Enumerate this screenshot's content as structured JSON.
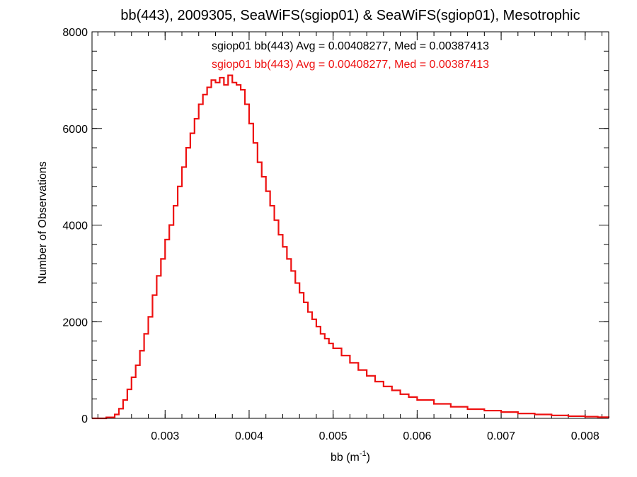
{
  "chart_data": {
    "type": "line",
    "style": "histogram-step",
    "title": "bb(443), 2009305, SeaWiFS(sgiop01) & SeaWiFS(sgiop01), Mesotrophic",
    "xlabel": "bb (m",
    "xlabel_sup": "-1",
    "xlabel_close": ")",
    "ylabel": "Number of Observations",
    "xlim": [
      0.00213,
      0.00828
    ],
    "ylim": [
      0,
      8000
    ],
    "grid": false,
    "x_ticks": [
      0.003,
      0.004,
      0.005,
      0.006,
      0.007,
      0.008
    ],
    "x_tick_labels": [
      "0.003",
      "0.004",
      "0.005",
      "0.006",
      "0.007",
      "0.008"
    ],
    "y_ticks": [
      0,
      2000,
      4000,
      6000,
      8000
    ],
    "y_tick_labels": [
      "0",
      "2000",
      "4000",
      "6000",
      "8000"
    ],
    "x_minor_step": 0.0002,
    "y_minor_step": 400,
    "annotations": [
      {
        "text": "sgiop01 bb(443) Avg = 0.00408277, Med = 0.00387413",
        "color": "#000000"
      },
      {
        "text": "sgiop01 bb(443) Avg = 0.00408277, Med = 0.00387413",
        "color": "#ee1111"
      }
    ],
    "series": [
      {
        "color": "#000000",
        "line_width": 1.6,
        "x": [
          0.00213,
          0.0023,
          0.0024,
          0.00245,
          0.0025,
          0.00255,
          0.0026,
          0.00265,
          0.0027,
          0.00275,
          0.0028,
          0.00285,
          0.0029,
          0.00295,
          0.003,
          0.00305,
          0.0031,
          0.00315,
          0.0032,
          0.00325,
          0.0033,
          0.00335,
          0.0034,
          0.00345,
          0.0035,
          0.00355,
          0.0036,
          0.00365,
          0.0037,
          0.00375,
          0.0038,
          0.00385,
          0.0039,
          0.00395,
          0.004,
          0.00405,
          0.0041,
          0.00415,
          0.0042,
          0.00425,
          0.0043,
          0.00435,
          0.0044,
          0.00445,
          0.0045,
          0.00455,
          0.0046,
          0.00465,
          0.0047,
          0.00475,
          0.0048,
          0.00485,
          0.0049,
          0.00495,
          0.005,
          0.0051,
          0.0052,
          0.0053,
          0.0054,
          0.0055,
          0.0056,
          0.0057,
          0.0058,
          0.0059,
          0.006,
          0.0062,
          0.0064,
          0.0066,
          0.0068,
          0.007,
          0.0072,
          0.0074,
          0.0076,
          0.0078,
          0.008,
          0.00815,
          0.00828
        ],
        "y": [
          0,
          20,
          80,
          200,
          380,
          600,
          850,
          1100,
          1400,
          1750,
          2100,
          2550,
          2950,
          3300,
          3700,
          4000,
          4400,
          4800,
          5200,
          5600,
          5900,
          6200,
          6500,
          6700,
          6850,
          7000,
          6950,
          7050,
          6900,
          7100,
          6950,
          6900,
          6800,
          6500,
          6100,
          5700,
          5300,
          5000,
          4700,
          4400,
          4100,
          3800,
          3550,
          3300,
          3050,
          2800,
          2600,
          2400,
          2200,
          2050,
          1900,
          1750,
          1650,
          1550,
          1450,
          1300,
          1150,
          1000,
          880,
          760,
          660,
          580,
          500,
          440,
          380,
          300,
          240,
          190,
          160,
          130,
          100,
          80,
          60,
          45,
          35,
          25,
          15
        ]
      },
      {
        "color": "#ee1111",
        "line_width": 2.2,
        "x": [
          0.00213,
          0.0023,
          0.0024,
          0.00245,
          0.0025,
          0.00255,
          0.0026,
          0.00265,
          0.0027,
          0.00275,
          0.0028,
          0.00285,
          0.0029,
          0.00295,
          0.003,
          0.00305,
          0.0031,
          0.00315,
          0.0032,
          0.00325,
          0.0033,
          0.00335,
          0.0034,
          0.00345,
          0.0035,
          0.00355,
          0.0036,
          0.00365,
          0.0037,
          0.00375,
          0.0038,
          0.00385,
          0.0039,
          0.00395,
          0.004,
          0.00405,
          0.0041,
          0.00415,
          0.0042,
          0.00425,
          0.0043,
          0.00435,
          0.0044,
          0.00445,
          0.0045,
          0.00455,
          0.0046,
          0.00465,
          0.0047,
          0.00475,
          0.0048,
          0.00485,
          0.0049,
          0.00495,
          0.005,
          0.0051,
          0.0052,
          0.0053,
          0.0054,
          0.0055,
          0.0056,
          0.0057,
          0.0058,
          0.0059,
          0.006,
          0.0062,
          0.0064,
          0.0066,
          0.0068,
          0.007,
          0.0072,
          0.0074,
          0.0076,
          0.0078,
          0.008,
          0.00815,
          0.00828
        ],
        "y": [
          0,
          20,
          80,
          200,
          380,
          600,
          850,
          1100,
          1400,
          1750,
          2100,
          2550,
          2950,
          3300,
          3700,
          4000,
          4400,
          4800,
          5200,
          5600,
          5900,
          6200,
          6500,
          6700,
          6850,
          7000,
          6950,
          7050,
          6900,
          7100,
          6950,
          6900,
          6800,
          6500,
          6100,
          5700,
          5300,
          5000,
          4700,
          4400,
          4100,
          3800,
          3550,
          3300,
          3050,
          2800,
          2600,
          2400,
          2200,
          2050,
          1900,
          1750,
          1650,
          1550,
          1450,
          1300,
          1150,
          1000,
          880,
          760,
          660,
          580,
          500,
          440,
          380,
          300,
          240,
          190,
          160,
          130,
          100,
          80,
          60,
          45,
          35,
          25,
          15
        ]
      }
    ]
  }
}
